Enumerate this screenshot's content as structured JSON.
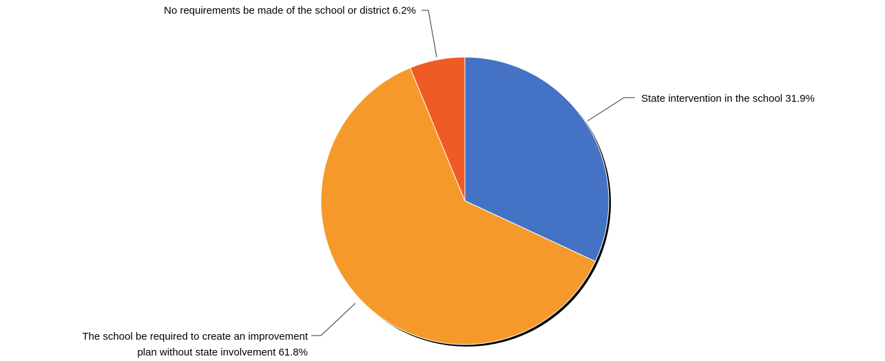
{
  "chart_data": {
    "type": "pie",
    "title": "",
    "slices": [
      {
        "label_lines": [
          "State intervention in the school 31.9%"
        ],
        "value": 31.9,
        "color": "#4472c4"
      },
      {
        "label_lines": [
          "The school be required to create an improvement",
          "plan without state involvement 61.8%"
        ],
        "value": 61.8,
        "color": "#f59a2a"
      },
      {
        "label_lines": [
          "No requirements be made of the school or district 6.2%"
        ],
        "value": 6.2,
        "color": "#f05a24"
      }
    ],
    "legend": "none"
  }
}
